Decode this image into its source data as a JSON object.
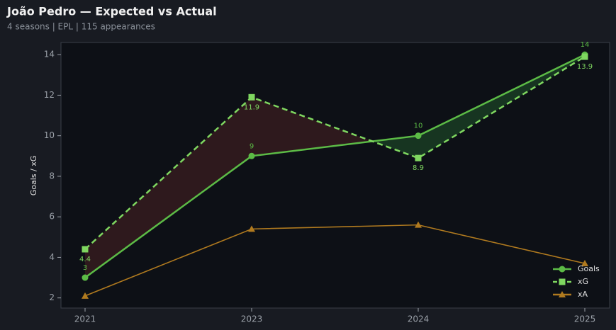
{
  "chart_data": {
    "type": "line",
    "title": "João Pedro — Expected vs Actual",
    "subtitle": "4 seasons | EPL | 115 appearances",
    "y_label": "Goals / xG",
    "categories": [
      "2021",
      "2023",
      "2024",
      "2025"
    ],
    "series": [
      {
        "name": "Goals",
        "color": "#5cbb46",
        "marker": "circle",
        "dashed": false,
        "labels": true,
        "values": [
          3,
          9,
          10,
          14
        ]
      },
      {
        "name": "xG",
        "color": "#7fd760",
        "marker": "square",
        "dashed": true,
        "labels": true,
        "values": [
          4.4,
          11.9,
          8.9,
          13.9
        ]
      },
      {
        "name": "xA",
        "color": "#b07a1f",
        "marker": "triangle",
        "dashed": false,
        "labels": false,
        "values": [
          2.1,
          5.4,
          5.6,
          3.7
        ]
      }
    ],
    "ylim": [
      1.5,
      14.6
    ],
    "yticks": [
      2,
      4,
      6,
      8,
      10,
      12,
      14
    ],
    "legend": "lower right"
  }
}
